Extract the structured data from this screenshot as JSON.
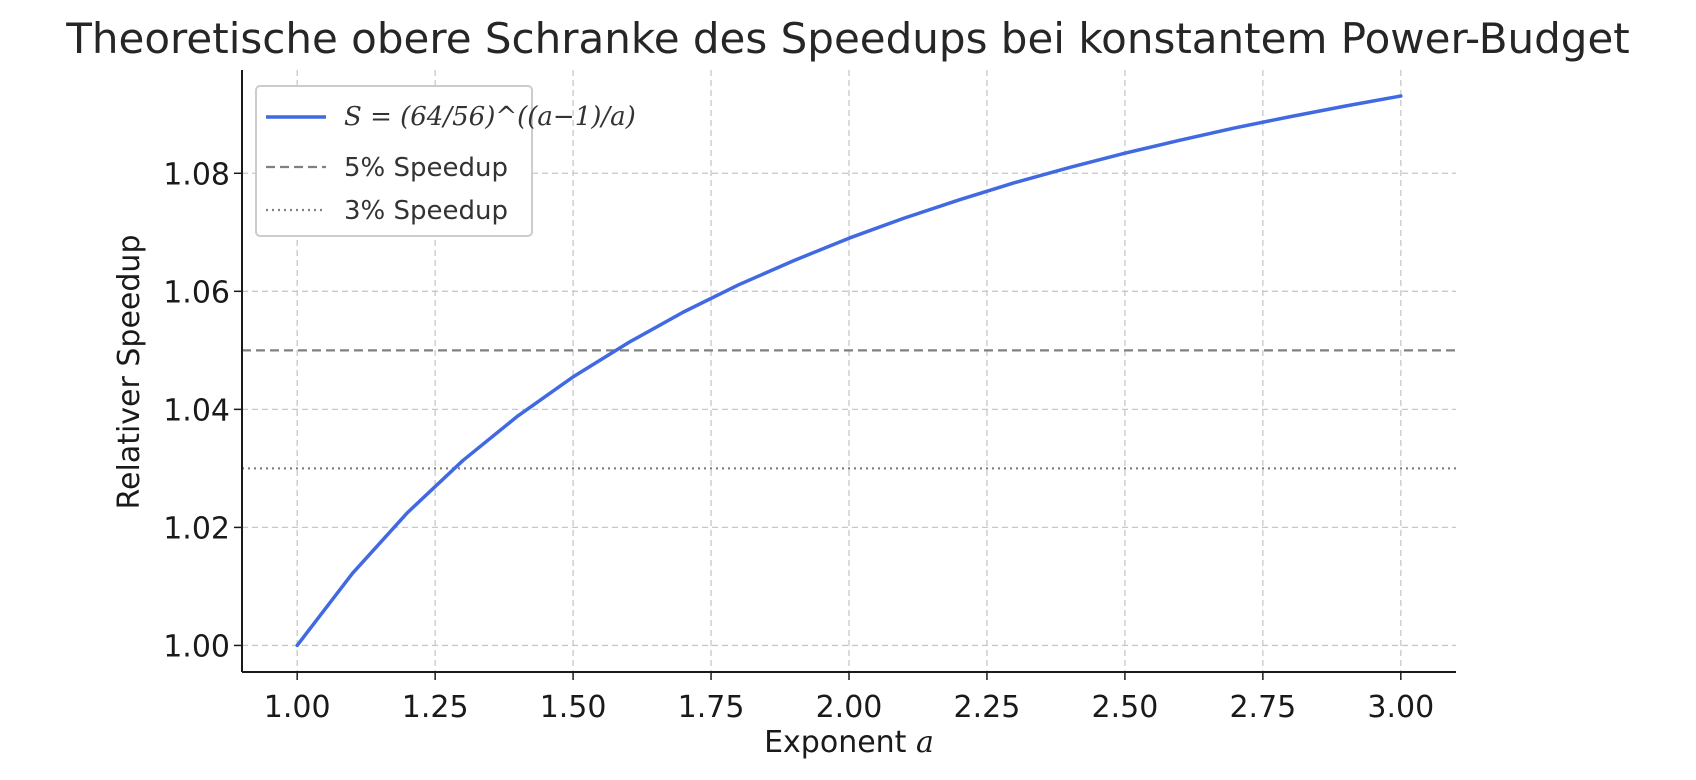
{
  "chart_data": {
    "type": "line",
    "title": "Theoretische obere Schranke des Speedups bei konstantem Power-Budget",
    "xlabel": "Exponent",
    "xlabel_var": "a",
    "ylabel": "Relativer Speedup",
    "xlim": [
      0.9,
      3.1
    ],
    "ylim": [
      0.9955,
      1.0975
    ],
    "x_ticks": [
      "1.00",
      "1.25",
      "1.50",
      "1.75",
      "2.00",
      "2.25",
      "2.50",
      "2.75",
      "3.00"
    ],
    "y_ticks": [
      "1.00",
      "1.02",
      "1.04",
      "1.06",
      "1.08"
    ],
    "grid": true,
    "legend_position": "top-left",
    "series": [
      {
        "name": "S = (64/56)^((a−1)/a)",
        "color": "#4169e1",
        "x": [
          1.0,
          1.1,
          1.2,
          1.3,
          1.4,
          1.5,
          1.6,
          1.7,
          1.8,
          1.9,
          2.0,
          2.1,
          2.2,
          2.3,
          2.4,
          2.5,
          2.6,
          2.7,
          2.8,
          2.9,
          3.0
        ],
        "y": [
          1.0,
          1.0122,
          1.0225,
          1.0313,
          1.0389,
          1.0455,
          1.0513,
          1.0565,
          1.0611,
          1.0652,
          1.069,
          1.0724,
          1.0755,
          1.0784,
          1.081,
          1.0834,
          1.0856,
          1.0877,
          1.0896,
          1.0914,
          1.0931
        ]
      }
    ],
    "reference_lines": [
      {
        "name": "5% Speedup",
        "y": 1.05,
        "style": "dashed",
        "color": "#808080"
      },
      {
        "name": "3% Speedup",
        "y": 1.03,
        "style": "dotted",
        "color": "#808080"
      }
    ]
  }
}
